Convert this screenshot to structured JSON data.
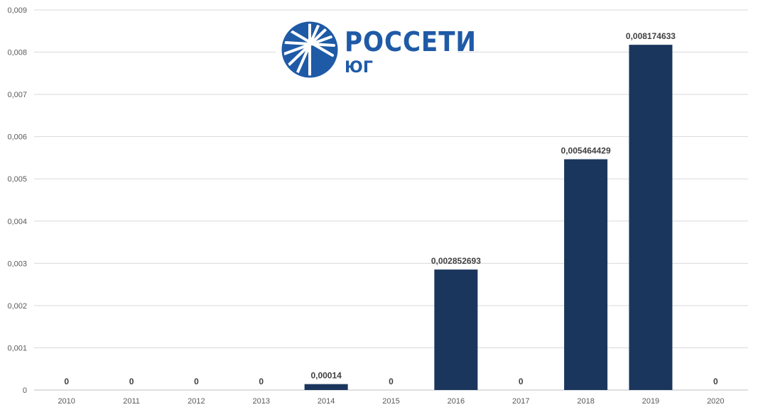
{
  "logo": {
    "name": "РОССЕТИ",
    "subtitle": "ЮГ",
    "color": "#1f5aa6",
    "icon": "rosseti-sunburst-icon"
  },
  "chart_data": {
    "type": "bar",
    "categories": [
      "2010",
      "2011",
      "2012",
      "2013",
      "2014",
      "2015",
      "2016",
      "2017",
      "2018",
      "2019",
      "2020"
    ],
    "values": [
      0,
      0,
      0,
      0,
      0.00014,
      0,
      0.002852693,
      0,
      0.005464429,
      0.008174633,
      0
    ],
    "data_labels": [
      "0",
      "0",
      "0",
      "0",
      "0,00014",
      "0",
      "0,002852693",
      "0",
      "0,005464429",
      "0,008174633",
      "0"
    ],
    "y_ticks": [
      "0",
      "0,001",
      "0,002",
      "0,003",
      "0,004",
      "0,005",
      "0,006",
      "0,007",
      "0,008",
      "0,009"
    ],
    "ylim": [
      0,
      0.009
    ],
    "grid": true,
    "bar_color": "#1b365d",
    "title": "",
    "xlabel": "",
    "ylabel": ""
  }
}
